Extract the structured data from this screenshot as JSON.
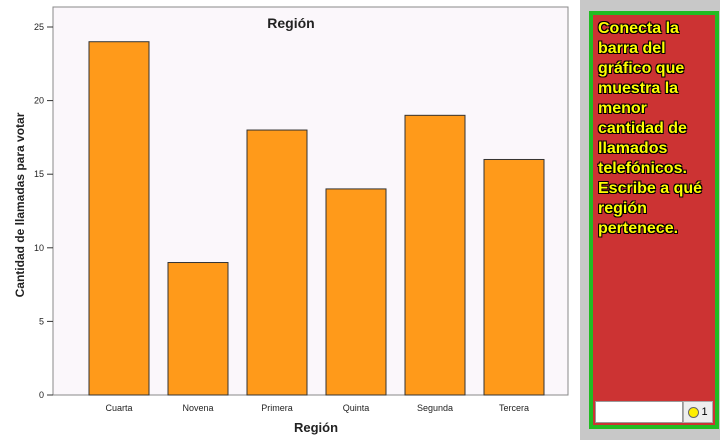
{
  "chart_data": {
    "type": "bar",
    "title": "Región",
    "xlabel": "Región",
    "ylabel": "Cantidad de llamadas para votar",
    "categories": [
      "Cuarta",
      "Novena",
      "Primera",
      "Quinta",
      "Segunda",
      "Tercera"
    ],
    "values": [
      24,
      9,
      18,
      14,
      19,
      16
    ],
    "ylim": [
      0,
      25
    ],
    "yticks": [
      0,
      5,
      10,
      15,
      20,
      25
    ],
    "grid": false,
    "bar_color": "#ff9a1a",
    "background": "#fbf7fb"
  },
  "side_panel": {
    "prompt": "Conecta la barra del gráfico que muestra la menor cantidad de llamados telefónicos. Escribe a qué región pertenece.",
    "answer_value": "",
    "badge_count": "1",
    "panel_color": "#cc3333",
    "border_color": "#22bb22"
  }
}
